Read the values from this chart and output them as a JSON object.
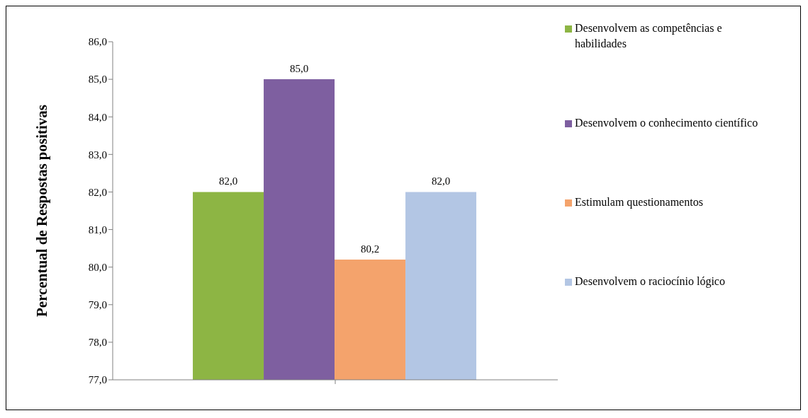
{
  "chart_data": {
    "type": "bar",
    "ylabel": "Percentual de Respostas positivas",
    "categories": [
      null
    ],
    "series": [
      {
        "name": "Desenvolvem as competências e habilidades",
        "color": "#8db544",
        "values": [
          82.0
        ],
        "value_labels": [
          "82,0"
        ]
      },
      {
        "name": "Desenvolvem o conhecimento científico",
        "color": "#7e5fa0",
        "values": [
          85.0
        ],
        "value_labels": [
          "85,0"
        ]
      },
      {
        "name": "Estimulam questionamentos",
        "color": "#f4a36c",
        "values": [
          80.2
        ],
        "value_labels": [
          "80,2"
        ]
      },
      {
        "name": "Desenvolvem o raciocínio lógico",
        "color": "#b3c6e4",
        "values": [
          82.0
        ],
        "value_labels": [
          "82,0"
        ]
      }
    ],
    "ylim": [
      77,
      86
    ],
    "yticks": [
      {
        "value": 77,
        "label": "77,0"
      },
      {
        "value": 78,
        "label": "78,0"
      },
      {
        "value": 79,
        "label": "79,0"
      },
      {
        "value": 80,
        "label": "80,0"
      },
      {
        "value": 81,
        "label": "81,0"
      },
      {
        "value": 82,
        "label": "82,0"
      },
      {
        "value": 83,
        "label": "83,0"
      },
      {
        "value": 84,
        "label": "84,0"
      },
      {
        "value": 85,
        "label": "85,0"
      },
      {
        "value": 86,
        "label": "86,0"
      }
    ],
    "grid": false,
    "legend": "right"
  }
}
